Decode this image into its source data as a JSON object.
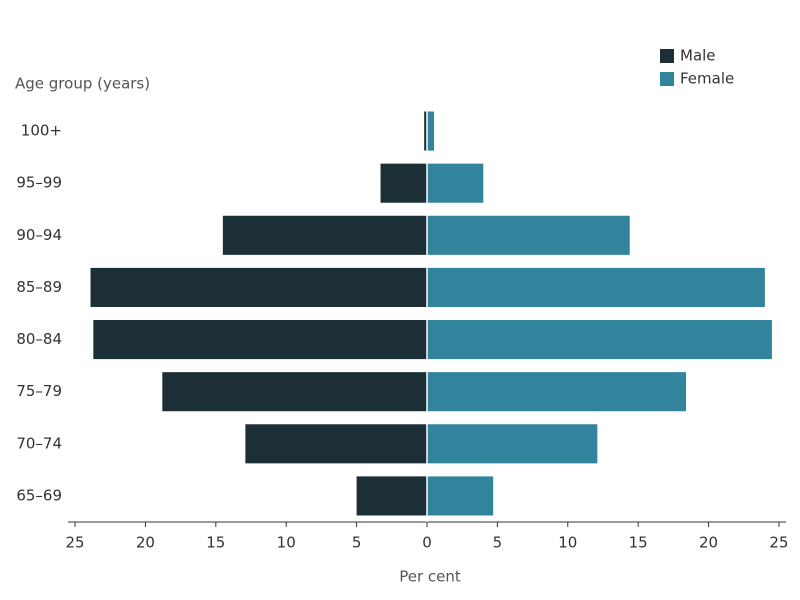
{
  "chart_data": {
    "type": "pyramid",
    "y_label": "Age group (years)",
    "x_label": "Per cent",
    "categories": [
      "100+",
      "95–99",
      "90–94",
      "85–89",
      "80–84",
      "75–79",
      "70–74",
      "65–69"
    ],
    "series": [
      {
        "name": "Male",
        "color": "#1c2e36",
        "values": [
          -0.2,
          -3.3,
          -14.5,
          -23.9,
          -23.7,
          -18.8,
          -12.9,
          -5.0
        ]
      },
      {
        "name": "Female",
        "color": "#31849b",
        "values": [
          0.5,
          4.0,
          14.4,
          24.0,
          24.5,
          18.4,
          12.1,
          4.7
        ]
      }
    ],
    "xlim": [
      -25.5,
      25.5
    ],
    "xticks": [
      {
        "value": -25,
        "label": "25"
      },
      {
        "value": -20,
        "label": "20"
      },
      {
        "value": -15,
        "label": "15"
      },
      {
        "value": -10,
        "label": "10"
      },
      {
        "value": -5,
        "label": "5"
      },
      0,
      5,
      10,
      15,
      20,
      25
    ],
    "legend": "top-right"
  }
}
